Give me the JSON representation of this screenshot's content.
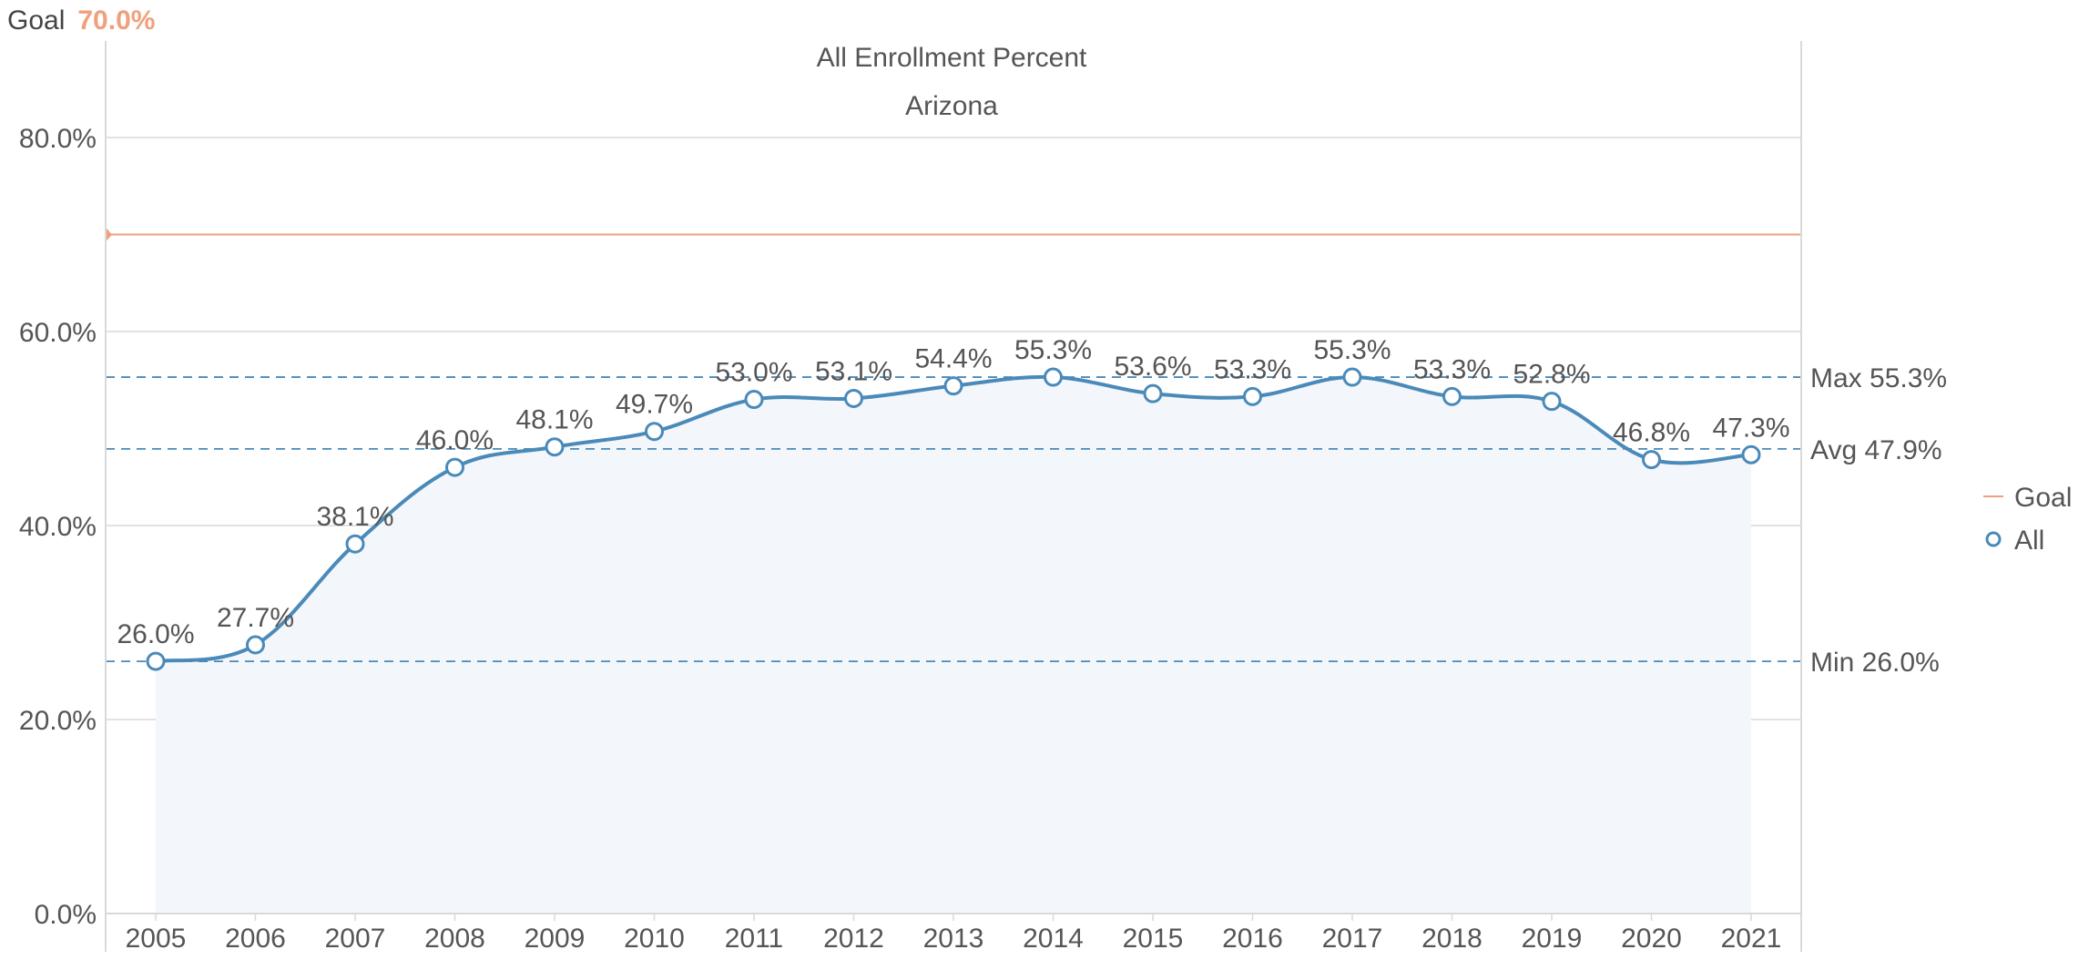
{
  "goal_header": {
    "label": "Goal",
    "value": "70.0%"
  },
  "colors": {
    "series": "#4a8ab9",
    "goal": "#f0a07c",
    "area": "#f3f6fa",
    "grid": "#d9d9d9",
    "ref_line": "#4a8ab9",
    "text": "#555555"
  },
  "chart_data": {
    "type": "line",
    "title": "All Enrollment Percent",
    "subtitle": "Arizona",
    "xlabel": "",
    "ylabel": "",
    "ylim": [
      0,
      90
    ],
    "yticks": [
      0,
      20,
      40,
      60,
      80
    ],
    "ytick_labels": [
      "0.0%",
      "20.0%",
      "40.0%",
      "60.0%",
      "80.0%"
    ],
    "categories": [
      "2005",
      "2006",
      "2007",
      "2008",
      "2009",
      "2010",
      "2011",
      "2012",
      "2013",
      "2014",
      "2015",
      "2016",
      "2017",
      "2018",
      "2019",
      "2020",
      "2021"
    ],
    "series": [
      {
        "name": "All",
        "values": [
          26.0,
          27.7,
          38.1,
          46.0,
          48.1,
          49.7,
          53.0,
          53.1,
          54.4,
          55.3,
          53.6,
          53.3,
          55.3,
          53.3,
          52.8,
          46.8,
          47.3
        ],
        "labels": [
          "26.0%",
          "27.7%",
          "38.1%",
          "46.0%",
          "48.1%",
          "49.7%",
          "53.0%",
          "53.1%",
          "54.4%",
          "55.3%",
          "53.6%",
          "53.3%",
          "55.3%",
          "53.3%",
          "52.8%",
          "46.8%",
          "47.3%"
        ]
      }
    ],
    "goal": {
      "name": "Goal",
      "value": 70.0
    },
    "reference_lines": [
      {
        "name": "max",
        "label": "Max 55.3%",
        "value": 55.3
      },
      {
        "name": "avg",
        "label": "Avg 47.9%",
        "value": 47.9
      },
      {
        "name": "min",
        "label": "Min 26.0%",
        "value": 26.0
      }
    ],
    "legend": {
      "position": "right",
      "items": [
        "Goal",
        "All"
      ]
    },
    "grid": true
  }
}
